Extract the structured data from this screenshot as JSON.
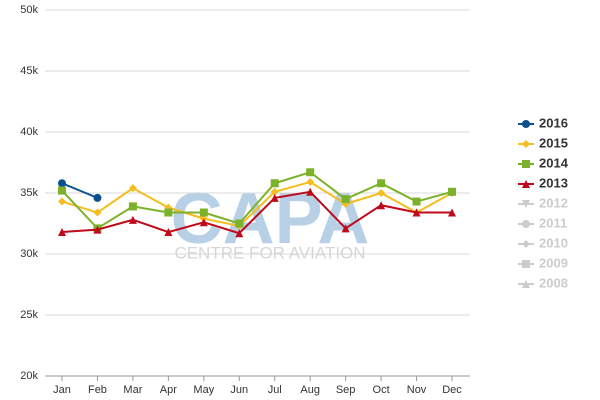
{
  "chart_data": {
    "type": "line",
    "categories": [
      "Jan",
      "Feb",
      "Mar",
      "Apr",
      "May",
      "Jun",
      "Jul",
      "Aug",
      "Sep",
      "Oct",
      "Nov",
      "Dec"
    ],
    "ylim": [
      20000,
      50000
    ],
    "yticks": [
      {
        "value": 20000,
        "label": "20k"
      },
      {
        "value": 25000,
        "label": "25k"
      },
      {
        "value": 30000,
        "label": "30k"
      },
      {
        "value": 35000,
        "label": "35k"
      },
      {
        "value": 40000,
        "label": "40k"
      },
      {
        "value": 45000,
        "label": "45k"
      },
      {
        "value": 50000,
        "label": "50k"
      }
    ],
    "grid": true,
    "legend": "right",
    "watermark": {
      "title": "CAPA",
      "subtitle": "CENTRE FOR AVIATION"
    },
    "series": [
      {
        "name": "2016",
        "color": "#0b4f8f",
        "marker": "circle",
        "values": [
          35800,
          34600,
          null,
          null,
          null,
          null,
          null,
          null,
          null,
          null,
          null,
          null
        ]
      },
      {
        "name": "2015",
        "color": "#f5bd1f",
        "marker": "diamond",
        "values": [
          34300,
          33400,
          35400,
          33800,
          32900,
          32300,
          35100,
          35900,
          34100,
          35000,
          33400,
          35000
        ]
      },
      {
        "name": "2014",
        "color": "#7cb22a",
        "marker": "square",
        "values": [
          35200,
          32100,
          33900,
          33400,
          33400,
          32500,
          35800,
          36700,
          34500,
          35800,
          34300,
          35100
        ]
      },
      {
        "name": "2013",
        "color": "#c0091b",
        "marker": "triangle",
        "values": [
          31800,
          32000,
          32800,
          31800,
          32600,
          31700,
          34600,
          35100,
          32100,
          34000,
          33400,
          33400
        ]
      },
      {
        "name": "2012",
        "color": "#cccccc",
        "marker": "triangle-down",
        "hidden": true,
        "values": [
          null,
          null,
          null,
          null,
          null,
          null,
          null,
          null,
          null,
          null,
          null,
          null
        ]
      },
      {
        "name": "2011",
        "color": "#cccccc",
        "marker": "circle",
        "hidden": true,
        "values": [
          null,
          null,
          null,
          null,
          null,
          null,
          null,
          null,
          null,
          null,
          null,
          null
        ]
      },
      {
        "name": "2010",
        "color": "#cccccc",
        "marker": "diamond",
        "hidden": true,
        "values": [
          null,
          null,
          null,
          null,
          null,
          null,
          null,
          null,
          null,
          null,
          null,
          null
        ]
      },
      {
        "name": "2009",
        "color": "#cccccc",
        "marker": "square",
        "hidden": true,
        "values": [
          null,
          null,
          null,
          null,
          null,
          null,
          null,
          null,
          null,
          null,
          null,
          null
        ]
      },
      {
        "name": "2008",
        "color": "#cccccc",
        "marker": "triangle",
        "hidden": true,
        "values": [
          null,
          null,
          null,
          null,
          null,
          null,
          null,
          null,
          null,
          null,
          null,
          null
        ]
      }
    ]
  }
}
